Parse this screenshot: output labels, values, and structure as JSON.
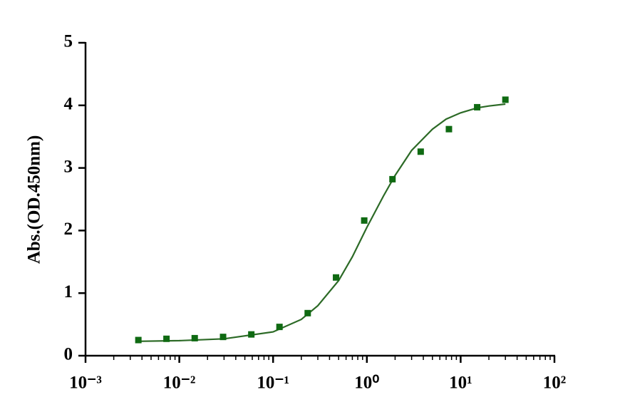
{
  "chart_data": {
    "type": "scatter",
    "y_label": "Abs.(OD.450nm)",
    "log_x": true,
    "xlim": [
      0.001,
      100
    ],
    "xticks": [
      {
        "value": 0.001,
        "label": "10⁻³"
      },
      {
        "value": 0.01,
        "label": "10⁻²"
      },
      {
        "value": 0.1,
        "label": "10⁻¹"
      },
      {
        "value": 1,
        "label": "10⁰"
      },
      {
        "value": 10,
        "label": "10¹"
      },
      {
        "value": 100,
        "label": "10²"
      }
    ],
    "ylim": [
      0,
      5
    ],
    "yticks": [
      0,
      1,
      2,
      3,
      4,
      5
    ],
    "color": "#0f6a12",
    "x": [
      0.00366,
      0.0073,
      0.0146,
      0.0293,
      0.0586,
      0.117,
      0.234,
      0.469,
      0.9375,
      1.875,
      3.75,
      7.5,
      15,
      30
    ],
    "values": [
      0.25,
      0.27,
      0.28,
      0.3,
      0.34,
      0.46,
      0.68,
      1.25,
      2.16,
      2.82,
      3.26,
      3.62,
      3.97,
      4.09
    ],
    "curve": {
      "color": "#2c6a26",
      "x": [
        0.0036,
        0.01,
        0.03,
        0.1,
        0.2,
        0.3,
        0.5,
        0.7,
        1,
        1.5,
        2,
        3,
        5,
        7,
        10,
        15,
        20,
        30
      ],
      "y": [
        0.23,
        0.24,
        0.27,
        0.38,
        0.58,
        0.8,
        1.2,
        1.58,
        2.05,
        2.55,
        2.88,
        3.28,
        3.62,
        3.78,
        3.88,
        3.96,
        3.99,
        4.02
      ]
    }
  }
}
